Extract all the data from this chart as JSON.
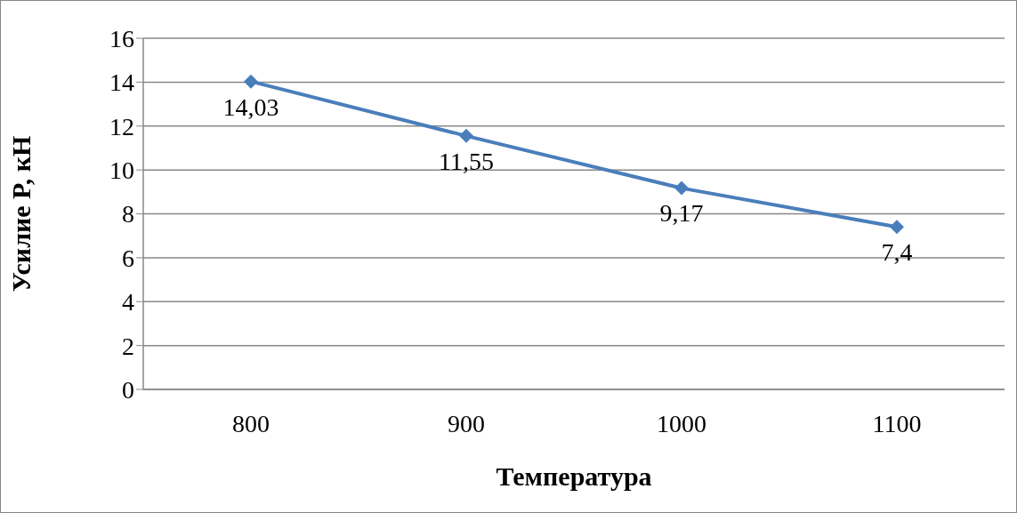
{
  "chart_data": {
    "type": "line",
    "xlabel": "Температура",
    "ylabel": "Усилие P, кН",
    "categories": [
      "800",
      "900",
      "1000",
      "1100"
    ],
    "series": [
      {
        "color": "#4a7ebb",
        "values": [
          14.03,
          11.55,
          9.17,
          7.4
        ],
        "value_labels": [
          "14,03",
          "11,55",
          "9,17",
          "7,4"
        ]
      }
    ],
    "ylim": [
      0,
      16
    ],
    "yticks": [
      0,
      2,
      4,
      6,
      8,
      10,
      12,
      14,
      16
    ],
    "grid": "y",
    "marker": "diamond",
    "line_style": "solid"
  }
}
